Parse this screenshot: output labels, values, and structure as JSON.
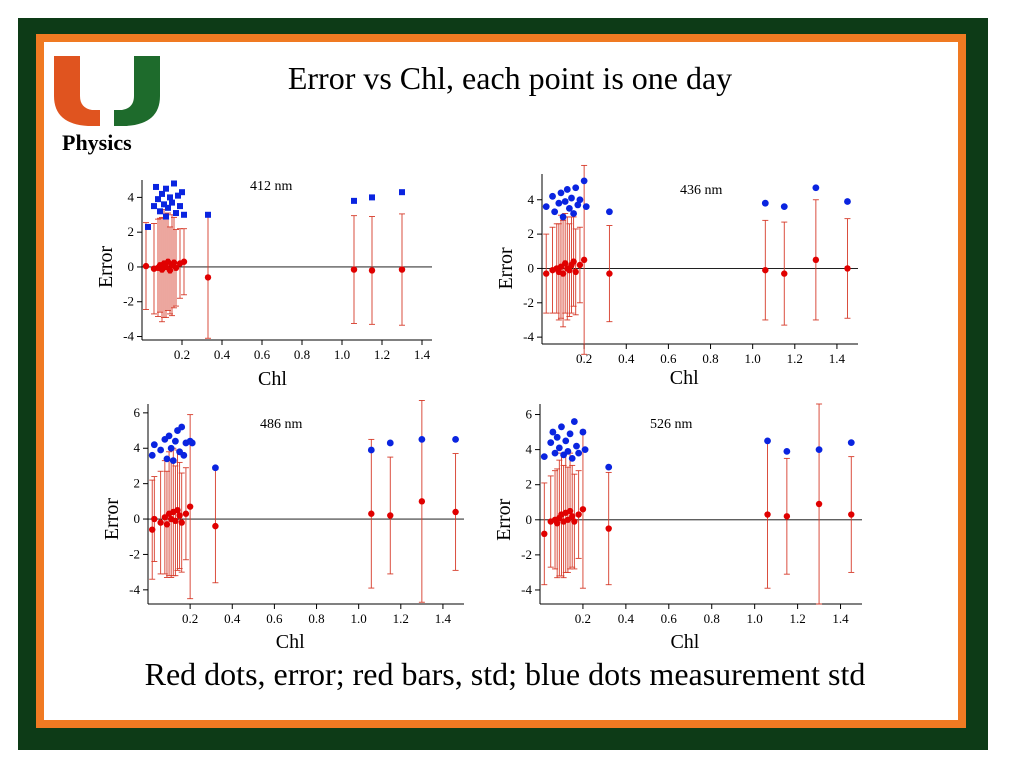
{
  "slide": {
    "title": "Error vs Chl, each point is one day",
    "logo_label": "Physics",
    "caption": "Red dots, error; red bars, std; blue dots measurement std"
  },
  "colors": {
    "frame_dark": "#0d3b17",
    "frame_orange": "#f07a22",
    "logo_orange": "#e0541f",
    "logo_green": "#1e6b2c",
    "error_red": "#e00000",
    "errorbar_red": "#d63b2a",
    "meas_blue": "#0a24e0"
  },
  "chart_data": [
    {
      "type": "scatter",
      "annotation": "412 nm",
      "xlabel": "Chl",
      "ylabel": "Error",
      "xlim": [
        0,
        1.45
      ],
      "ylim": [
        -4.2,
        5.0
      ],
      "xticks": [
        0.2,
        0.4,
        0.6,
        0.8,
        1.0,
        1.2,
        1.4
      ],
      "yticks": [
        -4,
        -2,
        0,
        2,
        4
      ],
      "zero_line": true,
      "blue_marker": "square",
      "series": [
        {
          "role": "error",
          "color": "red",
          "points": [
            {
              "x": 0.02,
              "y": 0.05,
              "std": 2.5
            },
            {
              "x": 0.06,
              "y": -0.1,
              "std": 2.6
            },
            {
              "x": 0.08,
              "y": -0.05,
              "std": 2.8
            },
            {
              "x": 0.09,
              "y": 0.1,
              "std": 2.7
            },
            {
              "x": 0.1,
              "y": -0.15,
              "std": 3.0
            },
            {
              "x": 0.11,
              "y": 0.2,
              "std": 3.1
            },
            {
              "x": 0.12,
              "y": 0.0,
              "std": 2.9
            },
            {
              "x": 0.13,
              "y": 0.3,
              "std": 2.8
            },
            {
              "x": 0.14,
              "y": -0.2,
              "std": 2.5
            },
            {
              "x": 0.15,
              "y": 0.1,
              "std": 2.9
            },
            {
              "x": 0.16,
              "y": 0.25,
              "std": 2.6
            },
            {
              "x": 0.17,
              "y": -0.05,
              "std": 2.2
            },
            {
              "x": 0.19,
              "y": 0.2,
              "std": 2.0
            },
            {
              "x": 0.21,
              "y": 0.3,
              "std": 1.9
            },
            {
              "x": 0.33,
              "y": -0.6,
              "std": 3.5
            },
            {
              "x": 1.06,
              "y": -0.15,
              "std": 3.1
            },
            {
              "x": 1.15,
              "y": -0.2,
              "std": 3.1
            },
            {
              "x": 1.3,
              "y": -0.15,
              "std": 3.2
            }
          ]
        },
        {
          "role": "measurement std",
          "color": "blue",
          "points": [
            {
              "x": 0.03,
              "y": 2.3
            },
            {
              "x": 0.06,
              "y": 3.5
            },
            {
              "x": 0.07,
              "y": 4.6
            },
            {
              "x": 0.08,
              "y": 3.9
            },
            {
              "x": 0.09,
              "y": 3.2
            },
            {
              "x": 0.1,
              "y": 4.2
            },
            {
              "x": 0.11,
              "y": 3.6
            },
            {
              "x": 0.12,
              "y": 4.5
            },
            {
              "x": 0.13,
              "y": 3.4
            },
            {
              "x": 0.14,
              "y": 4.0
            },
            {
              "x": 0.15,
              "y": 3.7
            },
            {
              "x": 0.16,
              "y": 4.8
            },
            {
              "x": 0.17,
              "y": 3.1
            },
            {
              "x": 0.18,
              "y": 4.1
            },
            {
              "x": 0.19,
              "y": 3.5
            },
            {
              "x": 0.2,
              "y": 4.3
            },
            {
              "x": 0.21,
              "y": 3.0
            },
            {
              "x": 0.12,
              "y": 2.9
            },
            {
              "x": 0.33,
              "y": 3.0
            },
            {
              "x": 1.06,
              "y": 3.8
            },
            {
              "x": 1.15,
              "y": 4.0
            },
            {
              "x": 1.3,
              "y": 4.3
            }
          ]
        }
      ]
    },
    {
      "type": "scatter",
      "annotation": "436 nm",
      "xlabel": "Chl",
      "ylabel": "Error",
      "xlim": [
        0,
        1.5
      ],
      "ylim": [
        -4.4,
        5.5
      ],
      "xticks": [
        0.2,
        0.4,
        0.6,
        0.8,
        1.0,
        1.2,
        1.4
      ],
      "yticks": [
        -4,
        -2,
        0,
        2,
        4
      ],
      "zero_line": true,
      "blue_marker": "circle",
      "series": [
        {
          "role": "error",
          "color": "red",
          "points": [
            {
              "x": 0.02,
              "y": -0.3,
              "std": 2.3
            },
            {
              "x": 0.05,
              "y": -0.1,
              "std": 2.5
            },
            {
              "x": 0.07,
              "y": 0.0,
              "std": 2.6
            },
            {
              "x": 0.08,
              "y": -0.2,
              "std": 2.8
            },
            {
              "x": 0.09,
              "y": 0.1,
              "std": 3.0
            },
            {
              "x": 0.1,
              "y": -0.3,
              "std": 3.1
            },
            {
              "x": 0.11,
              "y": 0.3,
              "std": 2.9
            },
            {
              "x": 0.12,
              "y": 0.0,
              "std": 3.0
            },
            {
              "x": 0.13,
              "y": -0.1,
              "std": 2.7
            },
            {
              "x": 0.14,
              "y": 0.2,
              "std": 2.8
            },
            {
              "x": 0.15,
              "y": 0.4,
              "std": 2.6
            },
            {
              "x": 0.16,
              "y": -0.2,
              "std": 2.5
            },
            {
              "x": 0.18,
              "y": 0.2,
              "std": 2.2
            },
            {
              "x": 0.2,
              "y": 0.5,
              "std": 5.5
            },
            {
              "x": 0.32,
              "y": -0.3,
              "std": 2.8
            },
            {
              "x": 1.06,
              "y": -0.1,
              "std": 2.9
            },
            {
              "x": 1.15,
              "y": -0.3,
              "std": 3.0
            },
            {
              "x": 1.3,
              "y": 0.5,
              "std": 3.5
            },
            {
              "x": 1.45,
              "y": 0.0,
              "std": 2.9
            }
          ]
        },
        {
          "role": "measurement std",
          "color": "blue",
          "points": [
            {
              "x": 0.02,
              "y": 3.6
            },
            {
              "x": 0.05,
              "y": 4.2
            },
            {
              "x": 0.06,
              "y": 3.3
            },
            {
              "x": 0.08,
              "y": 3.8
            },
            {
              "x": 0.09,
              "y": 4.4
            },
            {
              "x": 0.1,
              "y": 3.0
            },
            {
              "x": 0.11,
              "y": 3.9
            },
            {
              "x": 0.12,
              "y": 4.6
            },
            {
              "x": 0.13,
              "y": 3.5
            },
            {
              "x": 0.14,
              "y": 4.1
            },
            {
              "x": 0.15,
              "y": 3.2
            },
            {
              "x": 0.16,
              "y": 4.7
            },
            {
              "x": 0.17,
              "y": 3.7
            },
            {
              "x": 0.18,
              "y": 4.0
            },
            {
              "x": 0.2,
              "y": 5.1
            },
            {
              "x": 0.21,
              "y": 3.6
            },
            {
              "x": 0.32,
              "y": 3.3
            },
            {
              "x": 1.06,
              "y": 3.8
            },
            {
              "x": 1.15,
              "y": 3.6
            },
            {
              "x": 1.3,
              "y": 4.7
            },
            {
              "x": 1.45,
              "y": 3.9
            }
          ]
        }
      ]
    },
    {
      "type": "scatter",
      "annotation": "486 nm",
      "xlabel": "Chl",
      "ylabel": "Error",
      "xlim": [
        0,
        1.5
      ],
      "ylim": [
        -4.8,
        6.5
      ],
      "xticks": [
        0.2,
        0.4,
        0.6,
        0.8,
        1.0,
        1.2,
        1.4
      ],
      "yticks": [
        -4,
        -2,
        0,
        2,
        4,
        6
      ],
      "zero_line": true,
      "blue_marker": "circle",
      "series": [
        {
          "role": "error",
          "color": "red",
          "points": [
            {
              "x": 0.02,
              "y": -0.6,
              "std": 2.8
            },
            {
              "x": 0.03,
              "y": 0.0,
              "std": 2.4
            },
            {
              "x": 0.06,
              "y": -0.2,
              "std": 2.9
            },
            {
              "x": 0.08,
              "y": 0.1,
              "std": 3.2
            },
            {
              "x": 0.09,
              "y": -0.3,
              "std": 3.0
            },
            {
              "x": 0.1,
              "y": 0.3,
              "std": 3.5
            },
            {
              "x": 0.11,
              "y": 0.0,
              "std": 3.3
            },
            {
              "x": 0.12,
              "y": 0.4,
              "std": 3.6
            },
            {
              "x": 0.13,
              "y": -0.1,
              "std": 3.1
            },
            {
              "x": 0.14,
              "y": 0.5,
              "std": 3.4
            },
            {
              "x": 0.15,
              "y": 0.2,
              "std": 3.0
            },
            {
              "x": 0.16,
              "y": -0.2,
              "std": 2.8
            },
            {
              "x": 0.18,
              "y": 0.3,
              "std": 2.6
            },
            {
              "x": 0.2,
              "y": 0.7,
              "std": 5.2
            },
            {
              "x": 0.32,
              "y": -0.4,
              "std": 3.2
            },
            {
              "x": 1.06,
              "y": 0.3,
              "std": 4.2
            },
            {
              "x": 1.15,
              "y": 0.2,
              "std": 3.3
            },
            {
              "x": 1.3,
              "y": 1.0,
              "std": 5.7
            },
            {
              "x": 1.46,
              "y": 0.4,
              "std": 3.3
            }
          ]
        },
        {
          "role": "measurement std",
          "color": "blue",
          "points": [
            {
              "x": 0.02,
              "y": 3.6
            },
            {
              "x": 0.03,
              "y": 4.2
            },
            {
              "x": 0.06,
              "y": 3.9
            },
            {
              "x": 0.08,
              "y": 4.5
            },
            {
              "x": 0.09,
              "y": 3.4
            },
            {
              "x": 0.1,
              "y": 4.7
            },
            {
              "x": 0.11,
              "y": 4.0
            },
            {
              "x": 0.12,
              "y": 3.3
            },
            {
              "x": 0.13,
              "y": 4.4
            },
            {
              "x": 0.14,
              "y": 5.0
            },
            {
              "x": 0.15,
              "y": 3.8
            },
            {
              "x": 0.16,
              "y": 5.2
            },
            {
              "x": 0.17,
              "y": 3.6
            },
            {
              "x": 0.18,
              "y": 4.3
            },
            {
              "x": 0.2,
              "y": 4.4
            },
            {
              "x": 0.21,
              "y": 4.3
            },
            {
              "x": 0.32,
              "y": 2.9
            },
            {
              "x": 1.06,
              "y": 3.9
            },
            {
              "x": 1.15,
              "y": 4.3
            },
            {
              "x": 1.3,
              "y": 4.5
            },
            {
              "x": 1.46,
              "y": 4.5
            }
          ]
        }
      ]
    },
    {
      "type": "scatter",
      "annotation": "526 nm",
      "xlabel": "Chl",
      "ylabel": "Error",
      "xlim": [
        0,
        1.5
      ],
      "ylim": [
        -4.8,
        6.6
      ],
      "xticks": [
        0.2,
        0.4,
        0.6,
        0.8,
        1.0,
        1.2,
        1.4
      ],
      "yticks": [
        -4,
        -2,
        0,
        2,
        4,
        6
      ],
      "zero_line": true,
      "blue_marker": "circle",
      "series": [
        {
          "role": "error",
          "color": "red",
          "points": [
            {
              "x": 0.02,
              "y": -0.8,
              "std": 2.9
            },
            {
              "x": 0.05,
              "y": -0.1,
              "std": 2.6
            },
            {
              "x": 0.07,
              "y": 0.0,
              "std": 2.8
            },
            {
              "x": 0.08,
              "y": -0.2,
              "std": 3.1
            },
            {
              "x": 0.09,
              "y": 0.1,
              "std": 3.3
            },
            {
              "x": 0.1,
              "y": 0.3,
              "std": 3.5
            },
            {
              "x": 0.11,
              "y": -0.1,
              "std": 3.2
            },
            {
              "x": 0.12,
              "y": 0.4,
              "std": 3.4
            },
            {
              "x": 0.13,
              "y": 0.0,
              "std": 3.0
            },
            {
              "x": 0.14,
              "y": 0.5,
              "std": 3.3
            },
            {
              "x": 0.15,
              "y": 0.2,
              "std": 2.9
            },
            {
              "x": 0.16,
              "y": -0.1,
              "std": 2.7
            },
            {
              "x": 0.18,
              "y": 0.3,
              "std": 2.5
            },
            {
              "x": 0.2,
              "y": 0.6,
              "std": 4.5
            },
            {
              "x": 0.32,
              "y": -0.5,
              "std": 3.2
            },
            {
              "x": 1.06,
              "y": 0.3,
              "std": 4.2
            },
            {
              "x": 1.15,
              "y": 0.2,
              "std": 3.3
            },
            {
              "x": 1.3,
              "y": 0.9,
              "std": 5.7
            },
            {
              "x": 1.45,
              "y": 0.3,
              "std": 3.3
            }
          ]
        },
        {
          "role": "measurement std",
          "color": "blue",
          "points": [
            {
              "x": 0.02,
              "y": 3.6
            },
            {
              "x": 0.05,
              "y": 4.4
            },
            {
              "x": 0.06,
              "y": 5.0
            },
            {
              "x": 0.07,
              "y": 3.8
            },
            {
              "x": 0.08,
              "y": 4.7
            },
            {
              "x": 0.09,
              "y": 4.1
            },
            {
              "x": 0.1,
              "y": 5.3
            },
            {
              "x": 0.11,
              "y": 3.7
            },
            {
              "x": 0.12,
              "y": 4.5
            },
            {
              "x": 0.13,
              "y": 3.9
            },
            {
              "x": 0.14,
              "y": 4.9
            },
            {
              "x": 0.15,
              "y": 3.5
            },
            {
              "x": 0.16,
              "y": 5.6
            },
            {
              "x": 0.17,
              "y": 4.2
            },
            {
              "x": 0.18,
              "y": 3.8
            },
            {
              "x": 0.2,
              "y": 5.0
            },
            {
              "x": 0.21,
              "y": 4.0
            },
            {
              "x": 0.32,
              "y": 3.0
            },
            {
              "x": 1.06,
              "y": 4.5
            },
            {
              "x": 1.15,
              "y": 3.9
            },
            {
              "x": 1.3,
              "y": 4.0
            },
            {
              "x": 1.45,
              "y": 4.4
            }
          ]
        }
      ]
    }
  ]
}
